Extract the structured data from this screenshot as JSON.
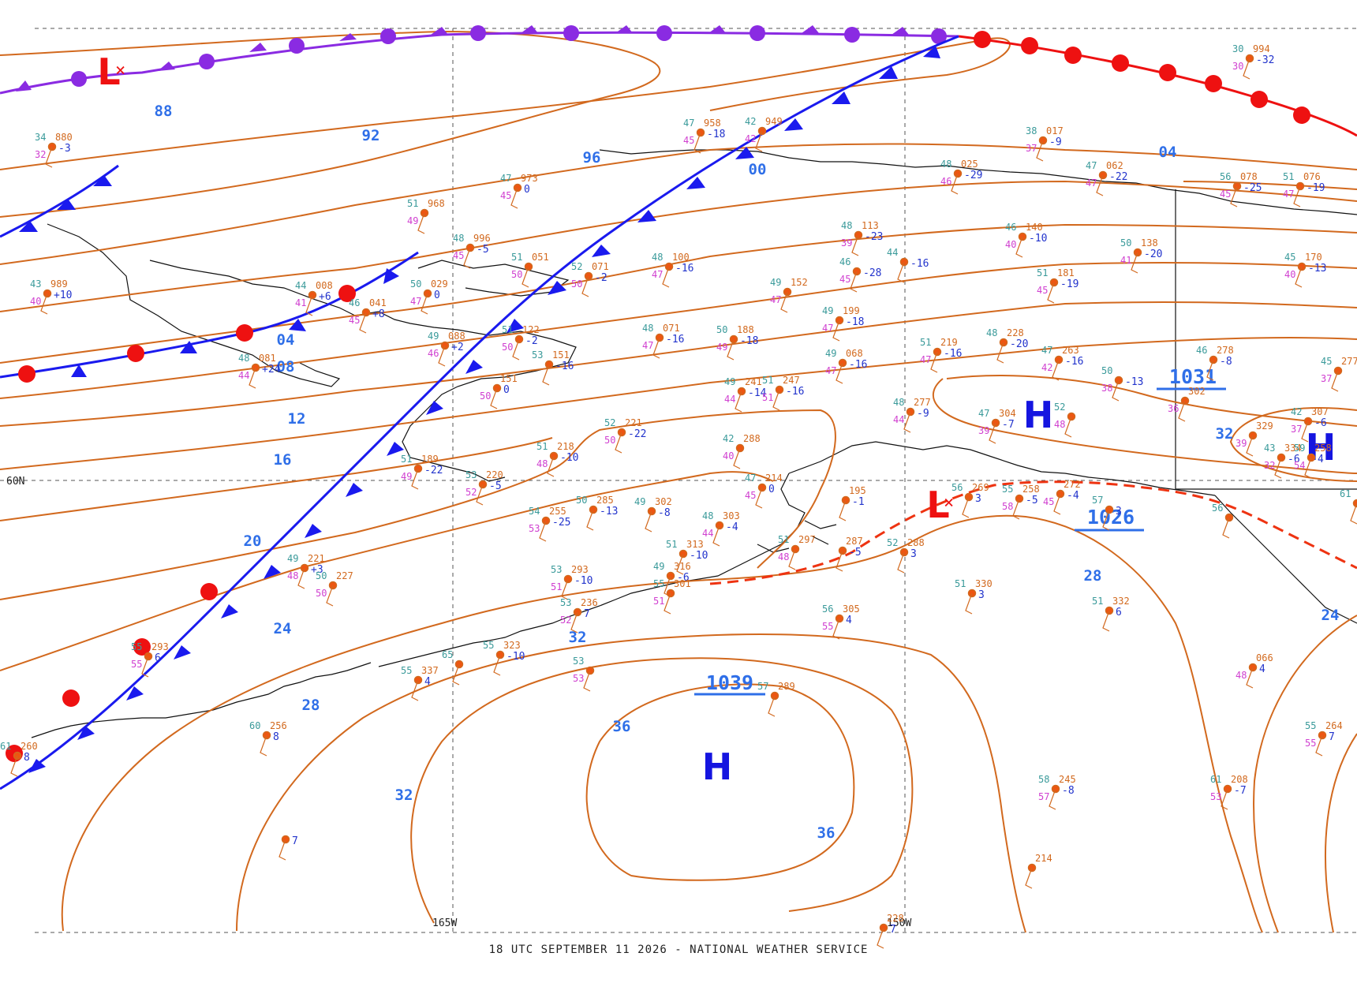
{
  "footer": "18 UTC SEPTEMBER 11 2026 - NATIONAL WEATHER SERVICE",
  "grid_labels": {
    "lat60": "60N",
    "lon165": "165W",
    "lon150": "150W"
  },
  "colors": {
    "isobar": "#d2691e",
    "cold_front": "#1a1aee",
    "warm_front": "#ee1111",
    "occluded_front": "#8a2be2",
    "trough": "#ee3311",
    "high": "#1515e0",
    "low": "#ee1111"
  },
  "centers": [
    {
      "type": "H",
      "label": "H",
      "value": "1039"
    },
    {
      "type": "H",
      "label": "H",
      "value": "1031"
    },
    {
      "type": "H",
      "label": "H",
      "value": "1026"
    },
    {
      "type": "H",
      "label": "H",
      "value": ""
    },
    {
      "type": "L",
      "label": "L",
      "value": ""
    },
    {
      "type": "L",
      "label": "L",
      "value": ""
    }
  ],
  "isobar_labels": [
    "88",
    "92",
    "96",
    "00",
    "04",
    "04",
    "08",
    "12",
    "16",
    "20",
    "24",
    "28",
    "32",
    "36",
    "36",
    "32",
    "28",
    "24",
    "32"
  ],
  "stations": [
    {
      "t": "34",
      "p": "880",
      "d": "32",
      "c": "-3"
    },
    {
      "t": "43",
      "p": "989",
      "d": "40",
      "c": "+10"
    },
    {
      "t": "51",
      "p": "968",
      "d": "49",
      "c": ""
    },
    {
      "t": "47",
      "p": "973",
      "d": "45",
      "c": "0"
    },
    {
      "t": "47",
      "p": "958",
      "d": "45",
      "c": "-18"
    },
    {
      "t": "42",
      "p": "949",
      "d": "42",
      "c": ""
    },
    {
      "t": "38",
      "p": "017",
      "d": "37",
      "c": "-9"
    },
    {
      "t": "30",
      "p": "994",
      "d": "30",
      "c": "-32"
    },
    {
      "t": "48",
      "p": "996",
      "d": "45",
      "c": "-5"
    },
    {
      "t": "51",
      "p": "051",
      "d": "50",
      "c": ""
    },
    {
      "t": "52",
      "p": "071",
      "d": "50",
      "c": "-2"
    },
    {
      "t": "48",
      "p": "100",
      "d": "47",
      "c": "-16"
    },
    {
      "t": "48",
      "p": "113",
      "d": "39",
      "c": "-23"
    },
    {
      "t": "48",
      "p": "025",
      "d": "46",
      "c": "-29"
    },
    {
      "t": "47",
      "p": "062",
      "d": "47",
      "c": "-22"
    },
    {
      "t": "56",
      "p": "078",
      "d": "45",
      "c": "-25"
    },
    {
      "t": "51",
      "p": "076",
      "d": "47",
      "c": "-19"
    },
    {
      "t": "44",
      "p": "008",
      "d": "41",
      "c": "+6"
    },
    {
      "t": "50",
      "p": "029",
      "d": "47",
      "c": "0"
    },
    {
      "t": "46",
      "p": "041",
      "d": "45",
      "c": "+8"
    },
    {
      "t": "46",
      "p": "",
      "d": "45",
      "c": "-28"
    },
    {
      "t": "44",
      "p": "",
      "d": "",
      "c": "-16"
    },
    {
      "t": "46",
      "p": "140",
      "d": "40",
      "c": "-10"
    },
    {
      "t": "50",
      "p": "138",
      "d": "41",
      "c": "-20"
    },
    {
      "t": "51",
      "p": "181",
      "d": "45",
      "c": "-19"
    },
    {
      "t": "45",
      "p": "170",
      "d": "40",
      "c": "-13"
    },
    {
      "t": "49",
      "p": "152",
      "d": "47",
      "c": ""
    },
    {
      "t": "49",
      "p": "199",
      "d": "47",
      "c": "-18"
    },
    {
      "t": "48",
      "p": "081",
      "d": "44",
      "c": "+24"
    },
    {
      "t": "49",
      "p": "088",
      "d": "46",
      "c": "+2"
    },
    {
      "t": "51",
      "p": "122",
      "d": "50",
      "c": "-2"
    },
    {
      "t": "48",
      "p": "071",
      "d": "47",
      "c": "-16"
    },
    {
      "t": "50",
      "p": "188",
      "d": "49",
      "c": "-18"
    },
    {
      "t": "49",
      "p": "068",
      "d": "47",
      "c": "-16"
    },
    {
      "t": "51",
      "p": "219",
      "d": "47",
      "c": "-16"
    },
    {
      "t": "48",
      "p": "228",
      "d": "",
      "c": "-20"
    },
    {
      "t": "47",
      "p": "263",
      "d": "42",
      "c": "-16"
    },
    {
      "t": "46",
      "p": "278",
      "d": "",
      "c": "-8"
    },
    {
      "t": "45",
      "p": "277",
      "d": "37",
      "c": ""
    },
    {
      "t": "53",
      "p": "151",
      "d": "",
      "c": "-16"
    },
    {
      "t": "",
      "p": "151",
      "d": "50",
      "c": "0"
    },
    {
      "t": "49",
      "p": "241",
      "d": "44",
      "c": "-14"
    },
    {
      "t": "51",
      "p": "247",
      "d": "51",
      "c": "-16"
    },
    {
      "t": "50",
      "p": "",
      "d": "38",
      "c": "-13"
    },
    {
      "t": "48",
      "p": "277",
      "d": "44",
      "c": "-9"
    },
    {
      "t": "47",
      "p": "304",
      "d": "39",
      "c": "-7"
    },
    {
      "t": "",
      "p": "302",
      "d": "36",
      "c": ""
    },
    {
      "t": "42",
      "p": "307",
      "d": "37",
      "c": "-6"
    },
    {
      "t": "52",
      "p": "221",
      "d": "50",
      "c": "-22"
    },
    {
      "t": "42",
      "p": "288",
      "d": "40",
      "c": ""
    },
    {
      "t": "",
      "p": "329",
      "d": "39",
      "c": ""
    },
    {
      "t": "43",
      "p": "334",
      "d": "32",
      "c": "-6"
    },
    {
      "t": "51",
      "p": "218",
      "d": "48",
      "c": "-10"
    },
    {
      "t": "51",
      "p": "189",
      "d": "49",
      "c": "-22"
    },
    {
      "t": "53",
      "p": "220",
      "d": "52",
      "c": "-5"
    },
    {
      "t": "47",
      "p": "214",
      "d": "45",
      "c": "0"
    },
    {
      "t": "56",
      "p": "269",
      "d": "",
      "c": "3"
    },
    {
      "t": "55",
      "p": "258",
      "d": "58",
      "c": "-5"
    },
    {
      "t": "",
      "p": "272",
      "d": "45",
      "c": "-4"
    },
    {
      "t": "57",
      "p": "",
      "d": "",
      "c": "3"
    },
    {
      "t": "54",
      "p": "255",
      "d": "53",
      "c": "-25"
    },
    {
      "t": "50",
      "p": "285",
      "d": "",
      "c": "-13"
    },
    {
      "t": "49",
      "p": "302",
      "d": "",
      "c": "-8"
    },
    {
      "t": "48",
      "p": "303",
      "d": "44",
      "c": "-4"
    },
    {
      "t": "51",
      "p": "297",
      "d": "48",
      "c": ""
    },
    {
      "t": "",
      "p": "287",
      "d": "",
      "c": "-5"
    },
    {
      "t": "52",
      "p": "288",
      "d": "",
      "c": "3"
    },
    {
      "t": "49",
      "p": "221",
      "d": "48",
      "c": "+3"
    },
    {
      "t": "50",
      "p": "227",
      "d": "50",
      "c": ""
    },
    {
      "t": "51",
      "p": "313",
      "d": "",
      "c": "-10"
    },
    {
      "t": "53",
      "p": "293",
      "d": "51",
      "c": "-10"
    },
    {
      "t": "49",
      "p": "316",
      "d": "",
      "c": "-6"
    },
    {
      "t": "53",
      "p": "236",
      "d": "52",
      "c": "7"
    },
    {
      "t": "55",
      "p": "301",
      "d": "51",
      "c": ""
    },
    {
      "t": "51",
      "p": "330",
      "d": "",
      "c": "3"
    },
    {
      "t": "56",
      "p": "305",
      "d": "55",
      "c": "4"
    },
    {
      "t": "51",
      "p": "332",
      "d": "",
      "c": "6"
    },
    {
      "t": "55",
      "p": "293",
      "d": "55",
      "c": "6"
    },
    {
      "t": "55",
      "p": "323",
      "d": "",
      "c": "-10"
    },
    {
      "t": "53",
      "p": "",
      "d": "53",
      "c": ""
    },
    {
      "t": "55",
      "p": "337",
      "d": "",
      "c": "4"
    },
    {
      "t": "65",
      "p": "",
      "d": "",
      "c": ""
    },
    {
      "t": "57",
      "p": "289",
      "d": "",
      "c": ""
    },
    {
      "t": "",
      "p": "066",
      "d": "48",
      "c": "4"
    },
    {
      "t": "60",
      "p": "256",
      "d": "",
      "c": "8"
    },
    {
      "t": "55",
      "p": "264",
      "d": "55",
      "c": "7"
    },
    {
      "t": "61",
      "p": "208",
      "d": "53",
      "c": "-7"
    },
    {
      "t": "58",
      "p": "245",
      "d": "57",
      "c": "-8"
    },
    {
      "t": "",
      "p": "",
      "d": "",
      "c": "7"
    },
    {
      "t": "61",
      "p": "260",
      "d": "",
      "c": "8"
    },
    {
      "t": "",
      "p": "228",
      "d": "",
      "c": "7"
    },
    {
      "t": "61",
      "p": "",
      "d": "",
      "c": ""
    },
    {
      "t": "56",
      "p": "",
      "d": "",
      "c": ""
    },
    {
      "t": "59",
      "p": "258",
      "d": "54",
      "c": "4"
    },
    {
      "t": "52",
      "p": "",
      "d": "48",
      "c": ""
    },
    {
      "t": "",
      "p": "195",
      "d": "",
      "c": "-1"
    },
    {
      "t": "",
      "p": "214",
      "d": "",
      "c": ""
    }
  ]
}
